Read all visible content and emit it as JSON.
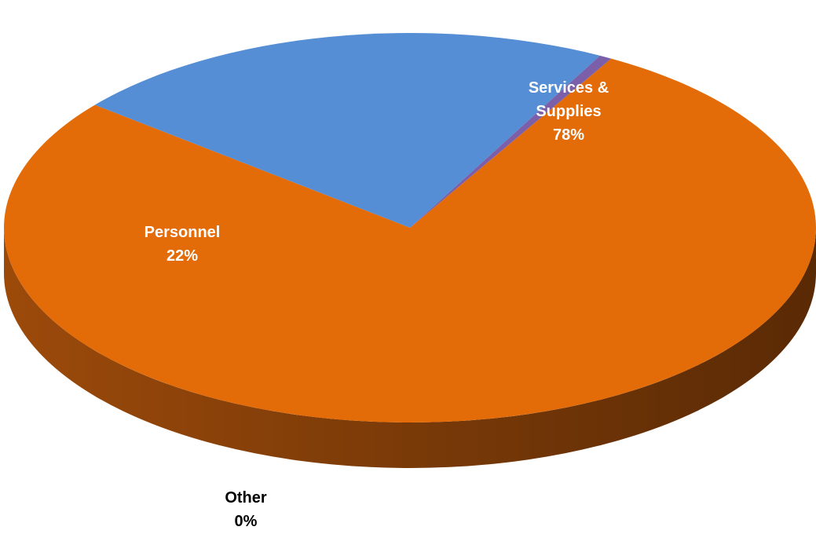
{
  "chart_data": {
    "type": "pie",
    "three_d": true,
    "title": "",
    "slices": [
      {
        "label": "Services & Supplies",
        "label_lines": [
          "Services &",
          "Supplies"
        ],
        "percent_label": "78%",
        "value": 78,
        "color": "#E36C09",
        "label_color": "#ffffff"
      },
      {
        "label": "Personnel",
        "label_lines": [
          "Personnel"
        ],
        "percent_label": "22%",
        "value": 22,
        "color": "#558ED5",
        "label_color": "#ffffff"
      },
      {
        "label": "Other",
        "label_lines": [
          "Other"
        ],
        "percent_label": "0%",
        "value": 0.5,
        "color": "#7B5FA8",
        "label_color": "#000000"
      }
    ],
    "legend": "none"
  }
}
